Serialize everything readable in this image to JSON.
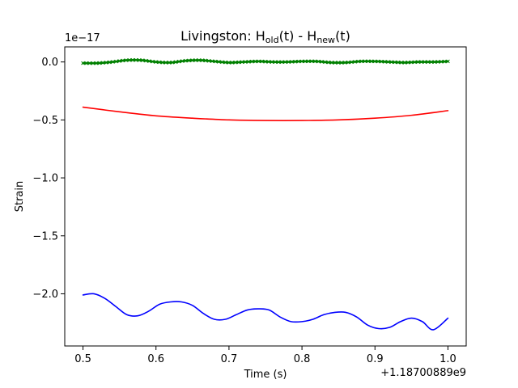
{
  "chart_data": {
    "type": "line",
    "title": {
      "prefix": "Livingston: H",
      "sub1": "old",
      "middle": "(t) - H",
      "sub2": "new",
      "suffix": "(t)"
    },
    "xlabel": "Time (s)",
    "ylabel": "Strain",
    "y_multiplier": "1e−17",
    "x_offset": "+1.18700889e9",
    "xlim": [
      0.475,
      1.025
    ],
    "ylim": [
      -2.45,
      0.13
    ],
    "xticks": [
      0.5,
      0.6,
      0.7,
      0.8,
      0.9,
      1.0
    ],
    "xtick_labels": [
      "0.5",
      "0.6",
      "0.7",
      "0.8",
      "0.9",
      "1.0"
    ],
    "yticks": [
      0.0,
      -0.5,
      -1.0,
      -1.5,
      -2.0
    ],
    "ytick_labels": [
      "0.0",
      "−0.5",
      "−1.0",
      "−1.5",
      "−2.0"
    ],
    "grid": false,
    "series": [
      {
        "color": "#008000",
        "marker": "x",
        "x": [
          0.5,
          0.52,
          0.54,
          0.56,
          0.58,
          0.6,
          0.62,
          0.64,
          0.66,
          0.68,
          0.7,
          0.72,
          0.74,
          0.76,
          0.78,
          0.8,
          0.82,
          0.84,
          0.86,
          0.88,
          0.9,
          0.92,
          0.94,
          0.96,
          0.98,
          1.0
        ],
        "y": [
          -0.01,
          -0.01,
          0.0,
          0.015,
          0.015,
          0.0,
          -0.005,
          0.01,
          0.015,
          0.005,
          -0.005,
          0.0,
          0.005,
          0.0,
          0.0,
          0.005,
          0.005,
          -0.005,
          -0.005,
          0.005,
          0.005,
          0.0,
          -0.005,
          0.0,
          0.0,
          0.005
        ]
      },
      {
        "color": "#ff0000",
        "x": [
          0.5,
          0.55,
          0.6,
          0.65,
          0.7,
          0.75,
          0.8,
          0.85,
          0.9,
          0.95,
          1.0
        ],
        "y": [
          -0.39,
          -0.43,
          -0.465,
          -0.485,
          -0.5,
          -0.505,
          -0.505,
          -0.5,
          -0.485,
          -0.46,
          -0.42
        ]
      },
      {
        "color": "#0000ff",
        "x": [
          0.5,
          0.515,
          0.53,
          0.545,
          0.56,
          0.575,
          0.59,
          0.605,
          0.62,
          0.635,
          0.65,
          0.665,
          0.68,
          0.695,
          0.71,
          0.725,
          0.74,
          0.755,
          0.77,
          0.785,
          0.8,
          0.815,
          0.83,
          0.845,
          0.86,
          0.875,
          0.89,
          0.905,
          0.92,
          0.935,
          0.95,
          0.965,
          0.98,
          1.0
        ],
        "y": [
          -2.01,
          -2.0,
          -2.04,
          -2.11,
          -2.18,
          -2.19,
          -2.15,
          -2.09,
          -2.07,
          -2.07,
          -2.1,
          -2.17,
          -2.22,
          -2.22,
          -2.18,
          -2.14,
          -2.13,
          -2.14,
          -2.2,
          -2.24,
          -2.24,
          -2.22,
          -2.18,
          -2.16,
          -2.16,
          -2.2,
          -2.27,
          -2.3,
          -2.29,
          -2.24,
          -2.21,
          -2.24,
          -2.31,
          -2.21
        ]
      }
    ]
  }
}
